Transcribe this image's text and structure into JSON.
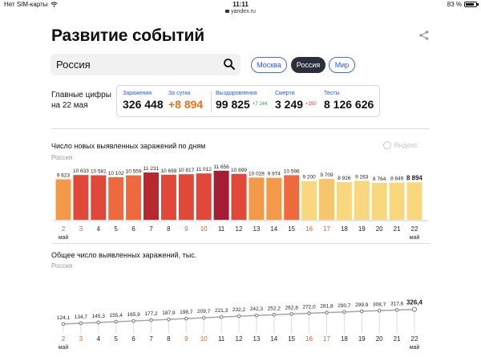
{
  "status_bar": {
    "carrier": "Нет SIM-карты",
    "time": "11:11",
    "battery": "83 %",
    "battery_level": 0.83,
    "url": "yandex.ru"
  },
  "header": {
    "title": "Развитие событий",
    "share_icon": "share-icon"
  },
  "search": {
    "value": "Россия",
    "icon": "search-icon"
  },
  "region_tabs": [
    {
      "label": "Москва",
      "active": false
    },
    {
      "label": "Россия",
      "active": true
    },
    {
      "label": "Мир",
      "active": false
    }
  ],
  "summary": {
    "label_line1": "Главные цифры",
    "label_line2": "на 22 мая",
    "stats": [
      {
        "label": "Заражения",
        "value": "326 448"
      },
      {
        "label": "За сутки",
        "value": "+8 894"
      },
      {
        "label": "Выздоровления",
        "value": "99 825",
        "delta": "+7 144"
      },
      {
        "label": "Смерти",
        "value": "3 249",
        "delta": "+150"
      },
      {
        "label": "Тесты",
        "value": "8 126 626"
      }
    ]
  },
  "colors": {
    "accent_blue": "#2a5bd7",
    "orange": "#f07020",
    "green": "#2d9a3e",
    "red": "#ee3333"
  },
  "chart_data": [
    {
      "type": "bar",
      "title": "Число новых выявленных заражений по дням",
      "subtitle": "Россия",
      "watermark": "Яндекс",
      "categories": [
        "2",
        "3",
        "4",
        "5",
        "6",
        "7",
        "8",
        "9",
        "10",
        "11",
        "12",
        "13",
        "14",
        "15",
        "16",
        "17",
        "18",
        "19",
        "20",
        "21",
        "22"
      ],
      "month_label": "май",
      "values": [
        9623,
        10633,
        10581,
        10102,
        10559,
        11231,
        10699,
        10817,
        11012,
        11656,
        10899,
        10028,
        9974,
        10598,
        9200,
        9709,
        8926,
        9263,
        8764,
        8849,
        8894
      ],
      "labels": [
        "9 623",
        "10 633",
        "10 581",
        "10 102",
        "10 559",
        "11 231",
        "10 699",
        "10 817",
        "11 012",
        "11 656",
        "10 899",
        "10 028",
        "9 974",
        "10 598",
        "9 200",
        "9 709",
        "8 926",
        "9 263",
        "8 764",
        "8 849",
        "8 894"
      ],
      "weekend_categories": [
        "2",
        "3",
        "9",
        "10",
        "16",
        "17"
      ],
      "colors": [
        "#f2994a",
        "#e0483a",
        "#e0483a",
        "#ee6a3e",
        "#ee6a3e",
        "#b8282f",
        "#e0483a",
        "#e0483a",
        "#e0483a",
        "#a51f34",
        "#e0483a",
        "#f2994a",
        "#f2994a",
        "#ee6a3e",
        "#f8d77f",
        "#f7c56d",
        "#f8d77f",
        "#f8d77f",
        "#f8d77f",
        "#f8d77f",
        "#f8d77f"
      ],
      "ylim": [
        0,
        12000
      ],
      "grid": false,
      "legend": "none"
    },
    {
      "type": "line",
      "title": "Общее число выявленных заражений, тыс.",
      "subtitle": "Россия",
      "categories": [
        "2",
        "3",
        "4",
        "5",
        "6",
        "7",
        "8",
        "9",
        "10",
        "11",
        "12",
        "13",
        "14",
        "15",
        "16",
        "17",
        "18",
        "19",
        "20",
        "21",
        "22"
      ],
      "month_label": "май",
      "values": [
        124.1,
        134.7,
        145.3,
        155.4,
        165.9,
        177.2,
        187.9,
        198.7,
        209.7,
        221.3,
        232.2,
        242.3,
        252.2,
        262.8,
        272.0,
        281.8,
        290.7,
        299.9,
        308.7,
        317.6,
        326.4
      ],
      "labels": [
        "124,1",
        "134,7",
        "145,3",
        "155,4",
        "165,9",
        "177,2",
        "187,9",
        "198,7",
        "209,7",
        "221,3",
        "232,2",
        "242,3",
        "252,2",
        "262,8",
        "272,0",
        "281,8",
        "290,7",
        "299,9",
        "308,7",
        "317,6",
        "326,4"
      ],
      "weekend_categories": [
        "2",
        "3",
        "9",
        "10",
        "16",
        "17"
      ],
      "ylim": [
        0,
        1200
      ],
      "grid": "vertical",
      "legend": "none"
    }
  ]
}
